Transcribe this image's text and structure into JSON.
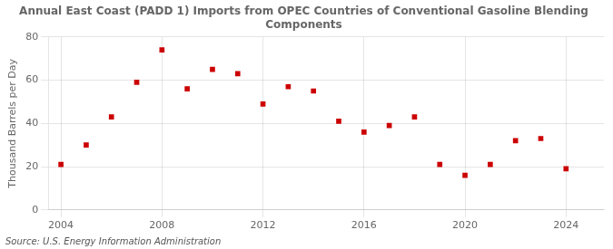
{
  "chart_data": {
    "type": "scatter",
    "title": "Annual East Coast (PADD 1) Imports from OPEC Countries of Conventional Gasoline Blending\nComponents",
    "ylabel": "Thousand Barrels per Day",
    "source": "Source: U.S. Energy Information Administration",
    "x": [
      2004,
      2005,
      2006,
      2007,
      2008,
      2009,
      2010,
      2011,
      2012,
      2013,
      2014,
      2015,
      2016,
      2017,
      2018,
      2019,
      2020,
      2021,
      2022,
      2023,
      2024
    ],
    "values": [
      21,
      30,
      43,
      59,
      74,
      56,
      65,
      63,
      49,
      57,
      55,
      41,
      36,
      39,
      43,
      21,
      16,
      21,
      32,
      33,
      19
    ],
    "xlim": [
      2003.5,
      2025.5
    ],
    "ylim": [
      0,
      80
    ],
    "xticks": [
      2004,
      2008,
      2012,
      2016,
      2020,
      2024
    ],
    "yticks": [
      0,
      20,
      40,
      60,
      80
    ],
    "color": "#cc0000",
    "marker": "square",
    "grid": true
  }
}
